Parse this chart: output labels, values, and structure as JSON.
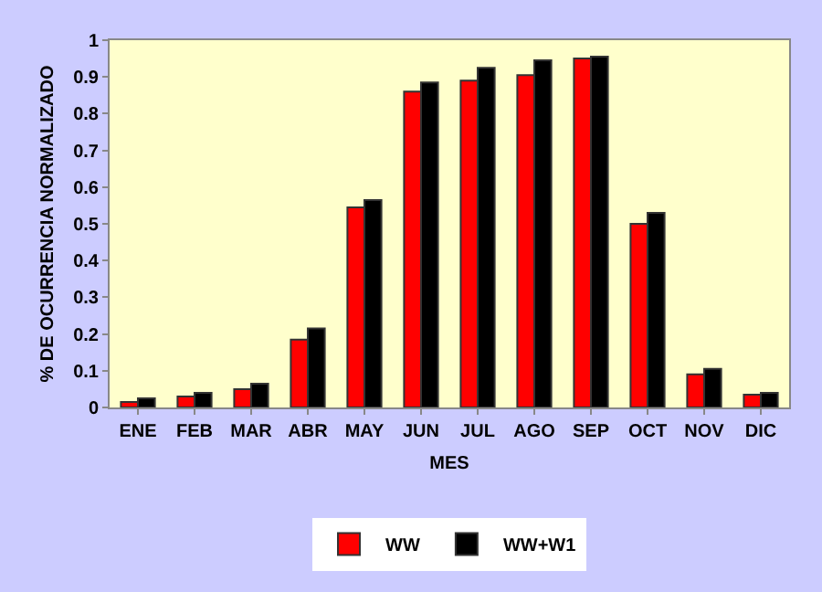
{
  "chart_data": {
    "type": "bar",
    "xlabel": "MES",
    "ylabel": "% DE OCURRENCIA NORMALIZADO",
    "categories": [
      "ENE",
      "FEB",
      "MAR",
      "ABR",
      "MAY",
      "JUN",
      "JUL",
      "AGO",
      "SEP",
      "OCT",
      "NOV",
      "DIC"
    ],
    "series": [
      {
        "name": "WW",
        "color": "#ff0000",
        "values": [
          0.015,
          0.03,
          0.05,
          0.185,
          0.545,
          0.86,
          0.89,
          0.905,
          0.95,
          0.5,
          0.09,
          0.035
        ]
      },
      {
        "name": "WW+W1",
        "color": "#000000",
        "values": [
          0.025,
          0.04,
          0.065,
          0.215,
          0.565,
          0.885,
          0.925,
          0.945,
          0.955,
          0.53,
          0.105,
          0.04
        ]
      }
    ],
    "ylim": [
      0,
      1
    ],
    "yticks": [
      0,
      0.1,
      0.2,
      0.3,
      0.4,
      0.5,
      0.6,
      0.7,
      0.8,
      0.9,
      1
    ],
    "grid": false,
    "legend": "bottom"
  }
}
